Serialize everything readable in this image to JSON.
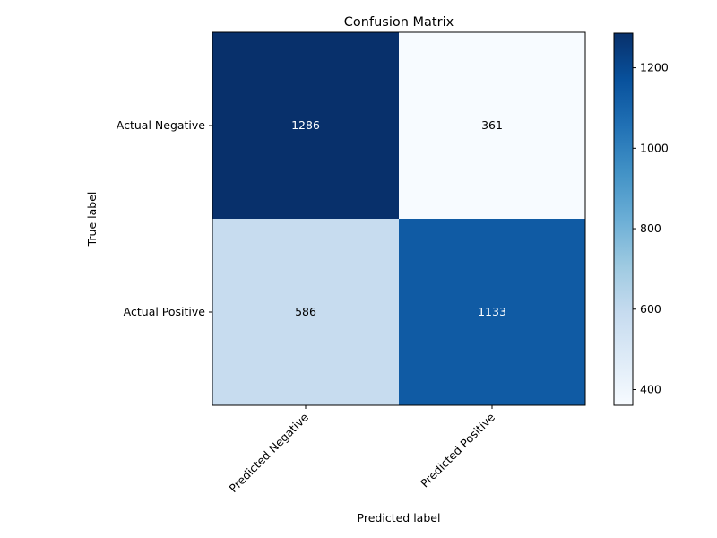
{
  "chart_data": {
    "type": "heatmap",
    "title": "Confusion Matrix",
    "xlabel": "Predicted label",
    "ylabel": "True label",
    "x_categories": [
      "Predicted Negative",
      "Predicted Positive"
    ],
    "y_categories": [
      "Actual Negative",
      "Actual Positive"
    ],
    "values": [
      [
        1286,
        361
      ],
      [
        586,
        1133
      ]
    ],
    "colormap": "Blues",
    "value_range": [
      361,
      1286
    ],
    "colorbar_ticks": [
      "400",
      "600",
      "800",
      "1000",
      "1200"
    ],
    "colorbar_tick_values": [
      400,
      600,
      800,
      1000,
      1200
    ]
  }
}
